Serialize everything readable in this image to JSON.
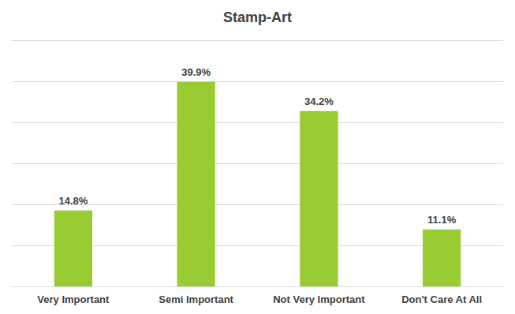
{
  "chart_data": {
    "type": "bar",
    "title": "Stamp-Art",
    "categories": [
      "Very Important",
      "Semi Important",
      "Not Very Important",
      "Don't Care At All"
    ],
    "values": [
      14.8,
      39.9,
      34.2,
      11.1
    ],
    "value_labels": [
      "14.8%",
      "39.9%",
      "34.2%",
      "11.1%"
    ],
    "color": "#99cc33",
    "ylim": [
      0,
      48
    ],
    "yticks": [
      0,
      8,
      16,
      24,
      32,
      40,
      48
    ],
    "grid": true,
    "data_labels": true,
    "tick_labels": "x"
  }
}
